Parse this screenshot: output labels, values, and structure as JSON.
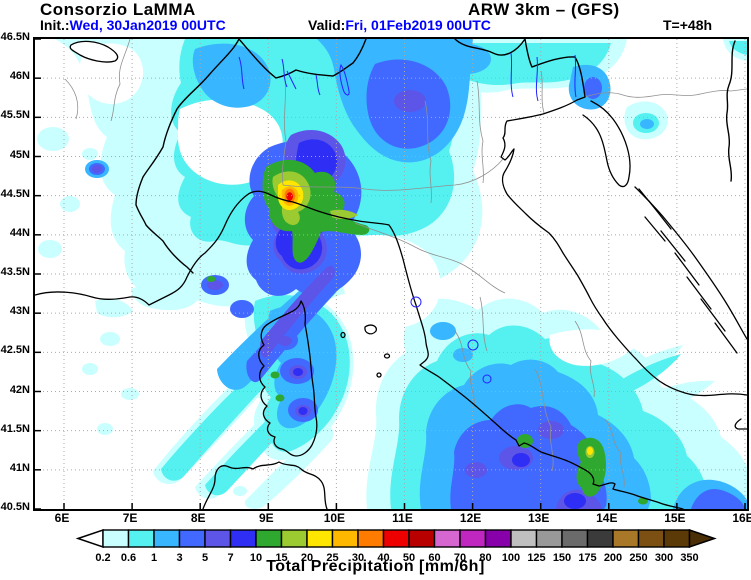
{
  "header": {
    "brand": "Consorzio LaMMA",
    "model": "ARW 3km – (GFS)",
    "init_label": "Init.:",
    "init_value": "Wed, 30Jan2019 00UTC",
    "valid_label": "Valid:",
    "valid_value": "Fri, 01Feb2019 00UTC",
    "lead_time": "T=+48h",
    "datetime_color": "#0000ff"
  },
  "map": {
    "lat_labels": [
      "46.5N",
      "46N",
      "45.5N",
      "45N",
      "44.5N",
      "44N",
      "43.5N",
      "43N",
      "42.5N",
      "42N",
      "41.5N",
      "41N",
      "40.5N"
    ],
    "lon_labels": [
      "6E",
      "7E",
      "8E",
      "9E",
      "10E",
      "11E",
      "12E",
      "13E",
      "14E",
      "15E",
      "16E"
    ]
  },
  "colorbar": {
    "title": "Total Precipitation [mm/6h]",
    "boundaries": [
      "0.2",
      "0.6",
      "1",
      "3",
      "5",
      "7",
      "10",
      "15",
      "20",
      "25",
      "30",
      "40",
      "50",
      "60",
      "70",
      "80",
      "100",
      "125",
      "150",
      "175",
      "200",
      "250",
      "300",
      "350"
    ],
    "colors": [
      "#C9FFFF",
      "#55F0F0",
      "#38B6FF",
      "#4169FF",
      "#5C55E8",
      "#2E2EF5",
      "#2FA82F",
      "#9BCB30",
      "#FFE600",
      "#FFB800",
      "#FF7C00",
      "#EE0000",
      "#B80000",
      "#D666D0",
      "#C026C0",
      "#8800AA",
      "#BFBFBF",
      "#999999",
      "#6B6B6B",
      "#3B3B3B",
      "#A87828",
      "#7C4F12",
      "#5C3A08"
    ],
    "left_arrow_color": "#FFFFFF",
    "right_arrow_color": "#4A2E06"
  }
}
